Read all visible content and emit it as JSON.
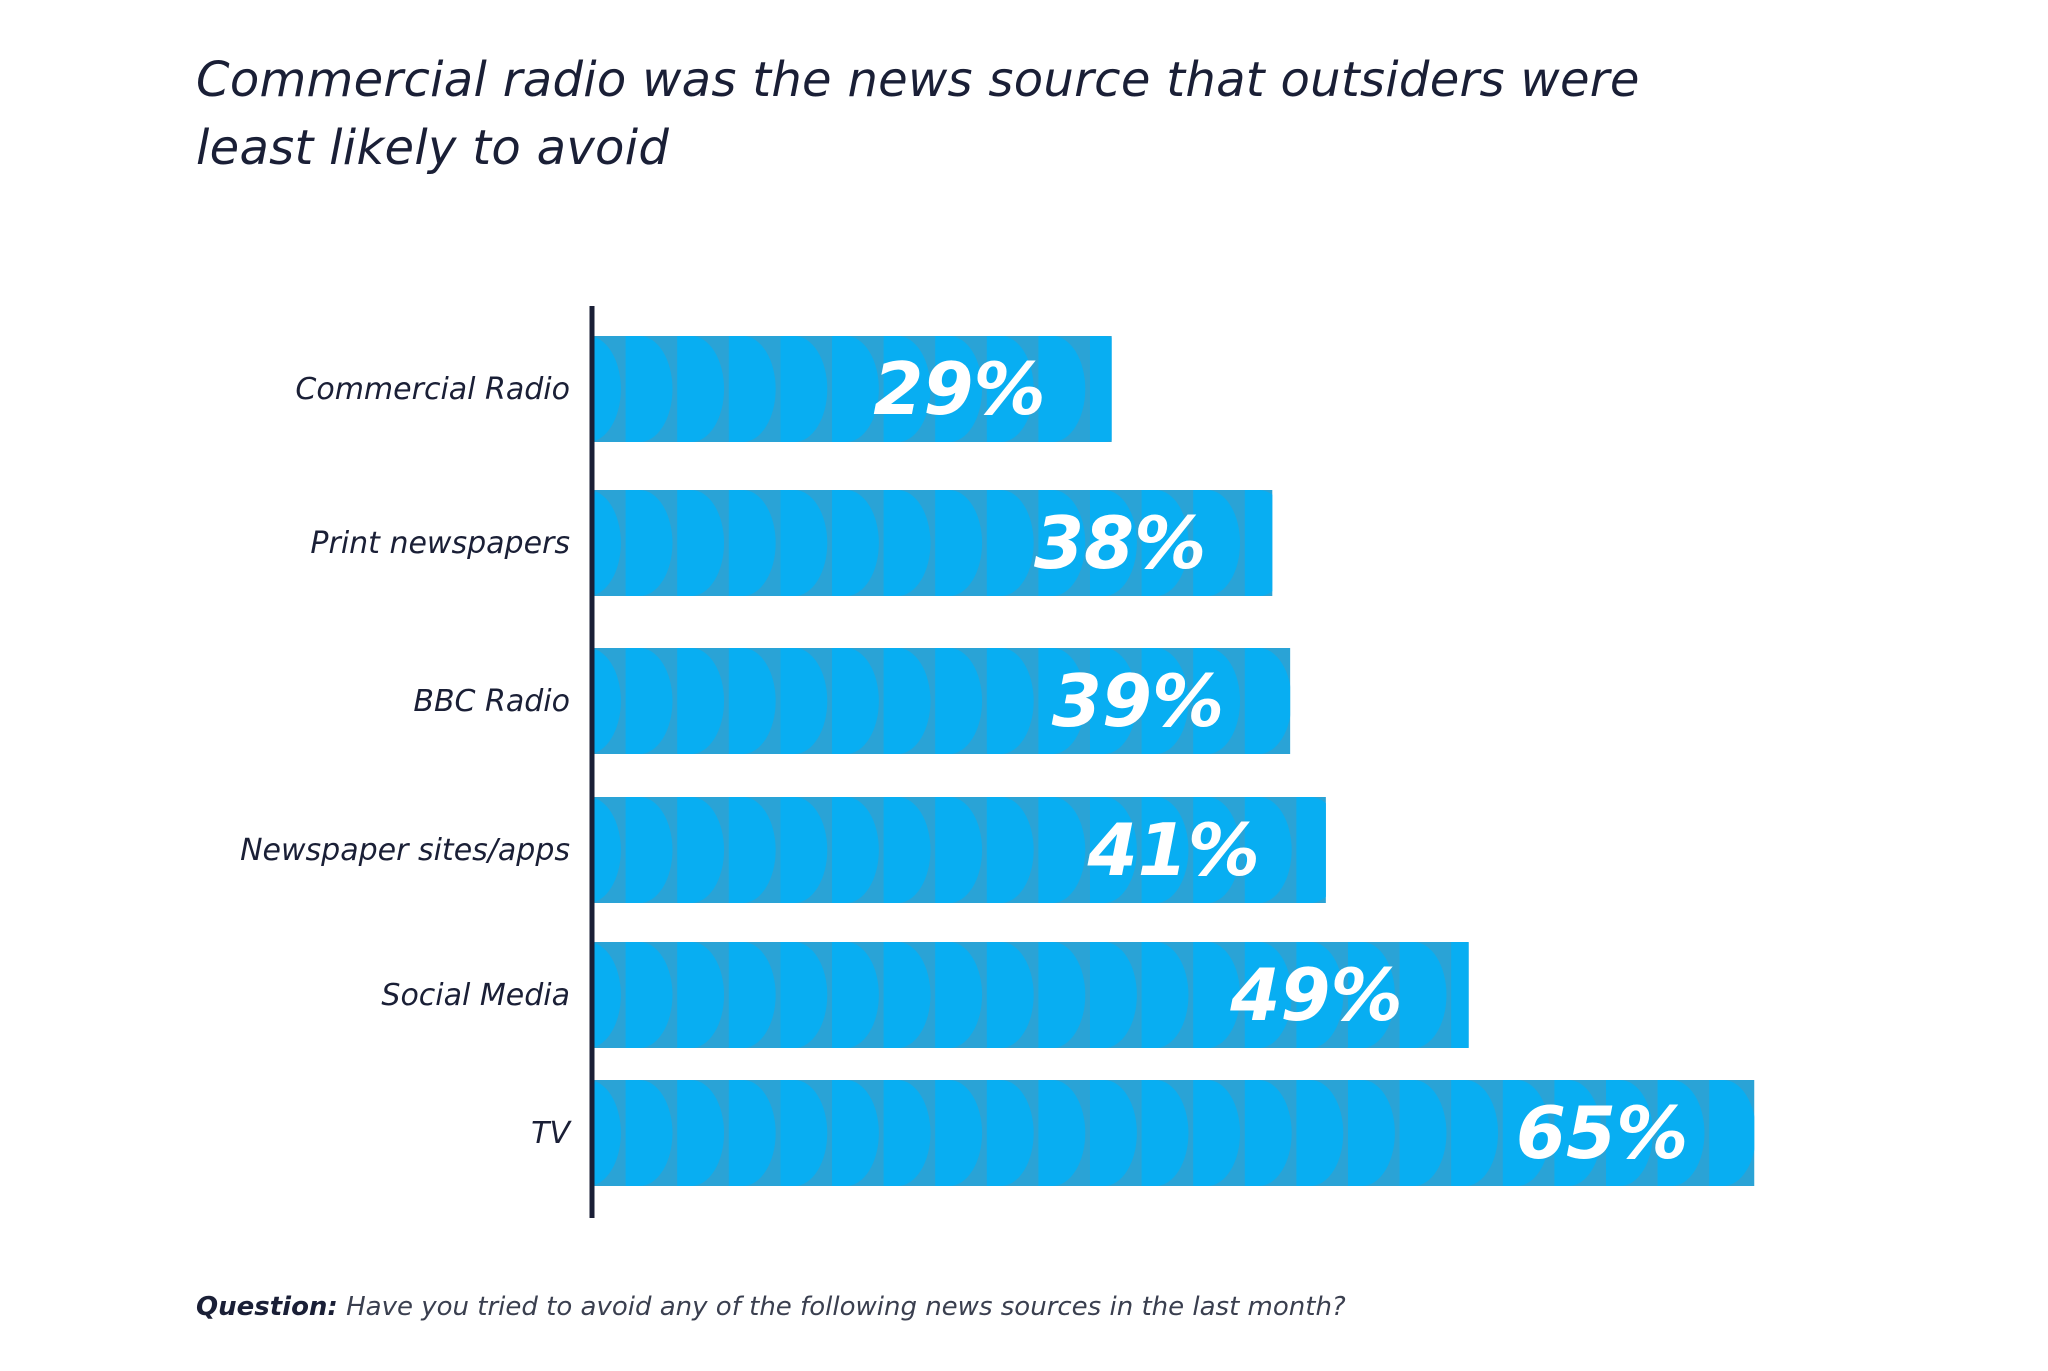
{
  "title": "Commercial radio was the news source that outsiders were least likely to avoid",
  "footnote": {
    "label": "Question:",
    "text": "Have you tried to avoid any of the following news sources in the last month?"
  },
  "colors": {
    "bar_light": "#08aef2",
    "bar_dark": "#2aa3d6",
    "axis": "#1a1f36",
    "label_text": "#1a1f36",
    "value_text": "#ffffff"
  },
  "chart_data": {
    "type": "bar",
    "orientation": "horizontal",
    "categories": [
      "Commercial Radio",
      "Print newspapers",
      "BBC Radio",
      "Newspaper sites/apps",
      "Social Media",
      "TV"
    ],
    "values": [
      29,
      38,
      39,
      41,
      49,
      65
    ],
    "value_labels": [
      "29%",
      "38%",
      "39%",
      "41%",
      "49%",
      "65%"
    ],
    "unit": "%",
    "xlabel": "",
    "ylabel": "",
    "grid": false,
    "legend": "none"
  }
}
